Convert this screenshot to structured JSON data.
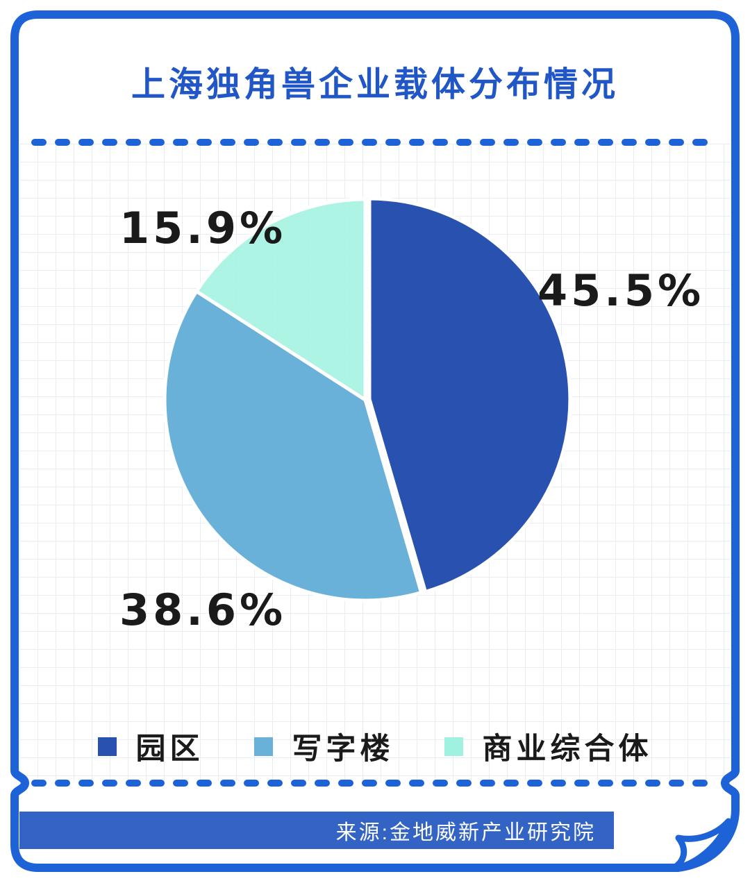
{
  "card": {
    "title": "上海独角兽企业载体分布情况",
    "source_label": "来源:金地威新产业研究院"
  },
  "colors": {
    "border_blue": "#1E62D8",
    "title_blue": "#2156C7",
    "banner_blue": "#3363C4",
    "label_black": "#1A1A1A",
    "grid_line": "#E7EDF3",
    "slice_gap_white": "#FFFFFF"
  },
  "chart_data": {
    "type": "pie",
    "title": "上海独角兽企业载体分布情况",
    "start_angle_deg": 0,
    "direction": "clockwise",
    "slices": [
      {
        "name": "园区",
        "value_pct": 45.5,
        "label": "45.5%",
        "color": "#2951AF"
      },
      {
        "name": "写字楼",
        "value_pct": 38.6,
        "label": "38.6%",
        "color": "#69B1D8"
      },
      {
        "name": "商业综合体",
        "value_pct": 15.9,
        "label": "15.9%",
        "color": "#9FF2E0"
      }
    ],
    "legend_position": "bottom",
    "data_labels": "outside",
    "source": "来源:金地威新产业研究院"
  }
}
